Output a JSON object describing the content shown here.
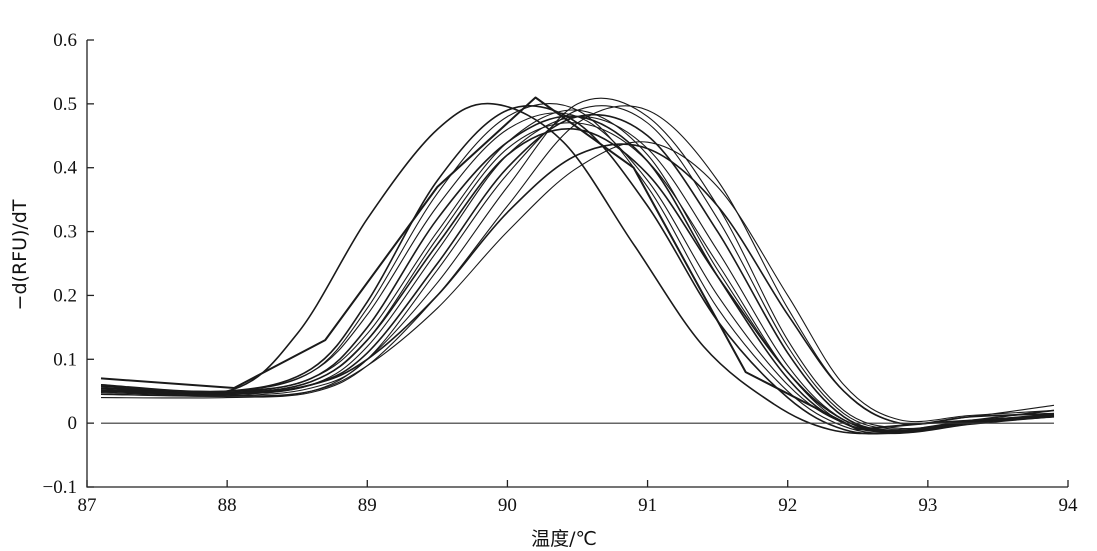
{
  "chart_data": {
    "type": "line",
    "title": "",
    "xlabel": "温度/℃",
    "ylabel": "−d(RFU)/dT",
    "xlim": [
      87,
      94
    ],
    "ylim": [
      -0.1,
      0.6
    ],
    "xticks": [
      87,
      88,
      89,
      90,
      91,
      92,
      93,
      94
    ],
    "xtick_labels": [
      "87",
      "88",
      "89",
      "90",
      "91",
      "92",
      "93",
      "94"
    ],
    "yticks": [
      -0.1,
      0,
      0.1,
      0.2,
      0.3,
      0.4,
      0.5,
      0.6
    ],
    "ytick_labels": [
      "−0.1",
      "0",
      "0.1",
      "0.2",
      "0.3",
      "0.4",
      "0.5",
      "0.6"
    ],
    "grid": false,
    "legend": "none",
    "baseline_y": 0,
    "series": [
      {
        "x": [
          87.1,
          88.0,
          88.5,
          89.0,
          89.5,
          89.9,
          90.4,
          90.9,
          91.4,
          91.9,
          92.3,
          92.7,
          93.2,
          93.9
        ],
        "values": [
          0.06,
          0.05,
          0.14,
          0.32,
          0.46,
          0.5,
          0.44,
          0.28,
          0.12,
          0.03,
          -0.01,
          -0.015,
          0.0,
          0.012
        ]
      },
      {
        "x": [
          87.1,
          88.05,
          88.7,
          89.5,
          90.2,
          90.9,
          91.7,
          92.5,
          93.0,
          93.9
        ],
        "values": [
          0.07,
          0.055,
          0.13,
          0.37,
          0.51,
          0.4,
          0.08,
          -0.01,
          0.0,
          0.012
        ]
      },
      {
        "x": [
          87.1,
          88.0,
          88.6,
          89.0,
          89.5,
          90.0,
          90.5,
          91.0,
          91.5,
          92.0,
          92.4,
          92.8,
          93.3,
          93.9
        ],
        "values": [
          0.058,
          0.05,
          0.08,
          0.17,
          0.34,
          0.46,
          0.48,
          0.38,
          0.2,
          0.06,
          0.0,
          -0.012,
          0.002,
          0.015
        ]
      },
      {
        "x": [
          87.1,
          88.0,
          88.6,
          89.0,
          89.5,
          90.0,
          90.5,
          91.0,
          91.5,
          92.0,
          92.4,
          92.8,
          93.3,
          93.9
        ],
        "values": [
          0.055,
          0.05,
          0.07,
          0.15,
          0.32,
          0.44,
          0.48,
          0.41,
          0.23,
          0.07,
          0.0,
          -0.014,
          0.0,
          0.01
        ]
      },
      {
        "x": [
          87.1,
          88.0,
          88.6,
          89.0,
          89.5,
          90.0,
          90.5,
          91.0,
          91.5,
          92.0,
          92.4,
          92.8,
          93.3,
          93.9
        ],
        "values": [
          0.052,
          0.048,
          0.065,
          0.13,
          0.29,
          0.43,
          0.47,
          0.41,
          0.25,
          0.08,
          0.005,
          -0.012,
          0.0,
          0.012
        ]
      },
      {
        "x": [
          87.1,
          88.0,
          88.6,
          89.0,
          89.5,
          90.0,
          90.5,
          91.0,
          91.5,
          92.0,
          92.4,
          92.8,
          93.3,
          93.9
        ],
        "values": [
          0.05,
          0.045,
          0.06,
          0.12,
          0.27,
          0.42,
          0.48,
          0.43,
          0.27,
          0.09,
          0.005,
          -0.015,
          -0.002,
          0.01
        ]
      },
      {
        "x": [
          87.1,
          88.0,
          88.6,
          89.0,
          89.5,
          90.0,
          90.5,
          91.0,
          91.5,
          92.0,
          92.4,
          92.8,
          93.3,
          93.9
        ],
        "values": [
          0.06,
          0.05,
          0.085,
          0.19,
          0.38,
          0.49,
          0.47,
          0.34,
          0.16,
          0.04,
          -0.01,
          -0.015,
          0.0,
          0.014
        ]
      },
      {
        "x": [
          87.1,
          88.0,
          88.6,
          89.0,
          89.5,
          90.0,
          90.5,
          91.0,
          91.5,
          92.0,
          92.4,
          92.8,
          93.3,
          93.9
        ],
        "values": [
          0.057,
          0.05,
          0.08,
          0.18,
          0.36,
          0.48,
          0.49,
          0.37,
          0.18,
          0.05,
          -0.005,
          -0.016,
          0.0,
          0.012
        ]
      },
      {
        "x": [
          87.1,
          88.0,
          88.6,
          89.0,
          89.5,
          90.0,
          90.5,
          91.0,
          91.5,
          92.0,
          92.4,
          92.8,
          93.3,
          93.9
        ],
        "values": [
          0.054,
          0.048,
          0.07,
          0.14,
          0.3,
          0.44,
          0.49,
          0.42,
          0.24,
          0.08,
          0.0,
          -0.012,
          0.002,
          0.014
        ]
      },
      {
        "x": [
          87.1,
          88.0,
          88.6,
          89.0,
          89.5,
          90.0,
          90.5,
          91.0,
          91.5,
          92.0,
          92.4,
          92.8,
          93.3,
          93.9
        ],
        "values": [
          0.05,
          0.045,
          0.06,
          0.11,
          0.25,
          0.4,
          0.48,
          0.45,
          0.3,
          0.11,
          0.01,
          -0.012,
          0.0,
          0.012
        ]
      },
      {
        "x": [
          87.1,
          88.0,
          88.6,
          89.0,
          89.5,
          90.0,
          90.5,
          91.0,
          91.5,
          92.0,
          92.4,
          92.8,
          93.3,
          93.9
        ],
        "values": [
          0.048,
          0.043,
          0.055,
          0.1,
          0.24,
          0.39,
          0.49,
          0.47,
          0.32,
          0.12,
          0.015,
          -0.01,
          0.002,
          0.01
        ]
      },
      {
        "x": [
          87.1,
          88.0,
          88.6,
          89.0,
          89.5,
          90.0,
          90.5,
          91.0,
          91.5,
          92.0,
          92.4,
          92.8,
          93.3,
          93.9
        ],
        "values": [
          0.046,
          0.042,
          0.05,
          0.1,
          0.22,
          0.37,
          0.5,
          0.48,
          0.34,
          0.13,
          0.02,
          -0.008,
          0.003,
          0.012
        ]
      },
      {
        "x": [
          87.1,
          88.0,
          88.6,
          89.0,
          89.5,
          90.0,
          90.5,
          91.0,
          91.5,
          92.0,
          92.4,
          92.8,
          93.3,
          93.9
        ],
        "values": [
          0.05,
          0.045,
          0.06,
          0.1,
          0.2,
          0.33,
          0.42,
          0.43,
          0.34,
          0.17,
          0.05,
          0.0,
          0.01,
          0.015
        ]
      },
      {
        "x": [
          87.1,
          88.0,
          88.6,
          89.0,
          89.5,
          90.0,
          90.5,
          91.0,
          91.5,
          92.0,
          92.4,
          92.8,
          93.3,
          93.9
        ],
        "values": [
          0.045,
          0.042,
          0.05,
          0.09,
          0.18,
          0.3,
          0.4,
          0.44,
          0.37,
          0.2,
          0.06,
          0.005,
          0.012,
          0.02
        ]
      },
      {
        "x": [
          87.1,
          88.0,
          88.6,
          89.0,
          89.5,
          90.0,
          90.5,
          91.0,
          91.5,
          92.0,
          92.4,
          92.8,
          93.3,
          93.9
        ],
        "values": [
          0.04,
          0.04,
          0.048,
          0.09,
          0.2,
          0.34,
          0.47,
          0.49,
          0.38,
          0.18,
          0.05,
          0.0,
          0.01,
          0.028
        ]
      },
      {
        "x": [
          87.1,
          88.0,
          88.6,
          89.0,
          89.5,
          90.0,
          90.5,
          91.0,
          91.5,
          92.0,
          92.4,
          92.8,
          93.3,
          93.9
        ],
        "values": [
          0.052,
          0.047,
          0.065,
          0.13,
          0.28,
          0.42,
          0.46,
          0.39,
          0.23,
          0.08,
          0.005,
          -0.012,
          0.004,
          0.02
        ]
      }
    ]
  }
}
